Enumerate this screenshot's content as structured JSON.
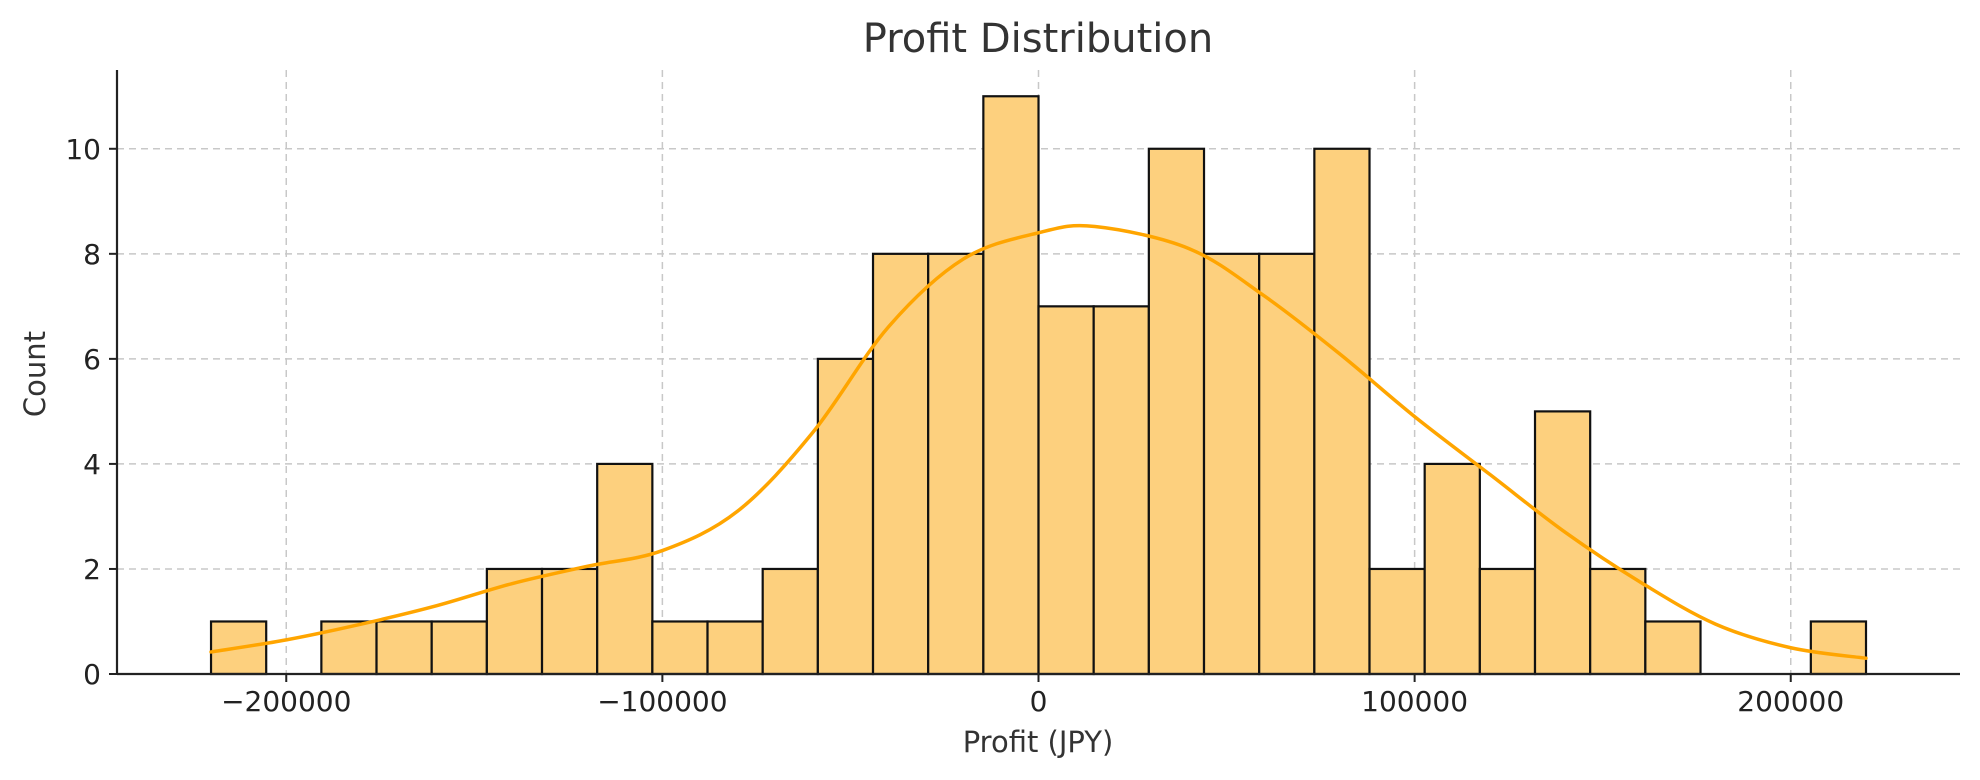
{
  "chart_data": {
    "type": "bar",
    "subtype": "histogram",
    "title": "Profit Distribution",
    "xlabel": "Profit (JPY)",
    "ylabel": "Count",
    "xlim": [
      -245000,
      245000
    ],
    "ylim": [
      0,
      11.5
    ],
    "x_ticks": [
      -200000,
      -100000,
      0,
      100000,
      200000
    ],
    "x_tick_labels": [
      "−200000",
      "−100000",
      "0",
      "100000",
      "200000"
    ],
    "y_ticks": [
      0,
      2,
      4,
      6,
      8,
      10
    ],
    "y_tick_labels": [
      "0",
      "2",
      "4",
      "6",
      "8",
      "10"
    ],
    "grid": true,
    "bin_start": -220000,
    "bin_width": 14667,
    "counts": [
      1,
      0,
      1,
      1,
      1,
      2,
      2,
      4,
      1,
      1,
      2,
      6,
      8,
      8,
      11,
      7,
      7,
      10,
      8,
      8,
      10,
      2,
      4,
      2,
      5,
      2,
      1,
      0,
      0,
      1
    ],
    "bar_color": "#fdd07e",
    "edge_color": "#111111",
    "kde": {
      "color": "#ffa500",
      "x": [
        -220000,
        -200000,
        -180000,
        -160000,
        -140000,
        -120000,
        -100000,
        -80000,
        -60000,
        -40000,
        -20000,
        0,
        15000,
        40000,
        60000,
        80000,
        100000,
        120000,
        140000,
        160000,
        180000,
        200000,
        220000
      ],
      "y": [
        0.42,
        0.65,
        0.95,
        1.3,
        1.72,
        2.05,
        2.35,
        3.1,
        4.6,
        6.6,
        7.9,
        8.4,
        8.52,
        8.1,
        7.2,
        6.1,
        4.9,
        3.8,
        2.7,
        1.75,
        0.95,
        0.5,
        0.3
      ]
    }
  }
}
